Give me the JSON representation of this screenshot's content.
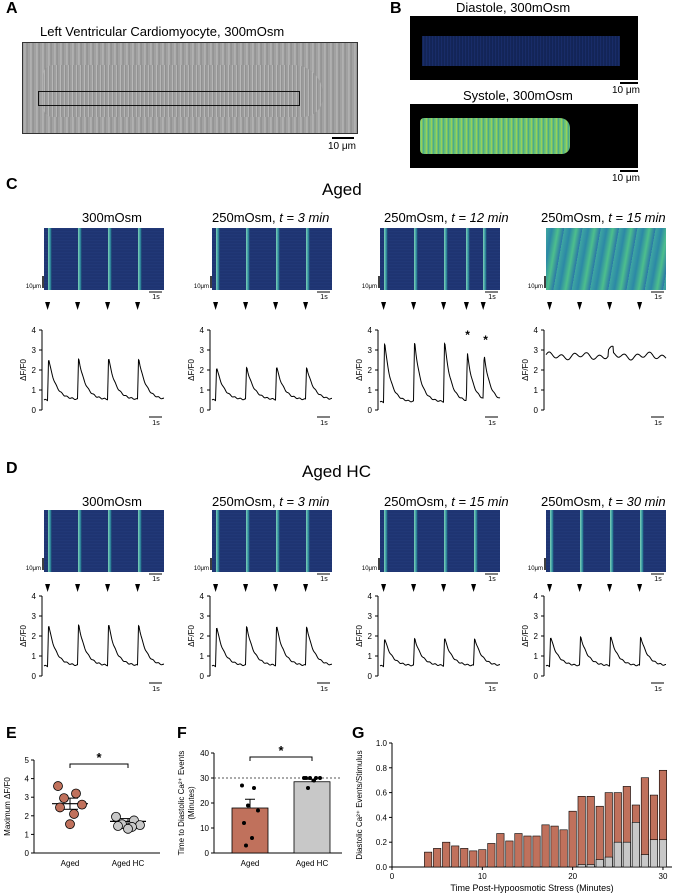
{
  "panels": {
    "A": {
      "label": "A",
      "title": "Left Ventricular Cardiomyocyte, 300mOsm",
      "scale": "10 μm"
    },
    "B": {
      "label": "B",
      "diastole": "Diastole, 300mOsm",
      "systole": "Systole, 300mOsm",
      "scale": "10 μm"
    },
    "C": {
      "label": "C",
      "group": "Aged",
      "columns": [
        {
          "title": "300mOsm",
          "title_it": ""
        },
        {
          "title": "250mOsm, ",
          "title_it": "t = 3 min"
        },
        {
          "title": "250mOsm, ",
          "title_it": "t = 12 min"
        },
        {
          "title": "250mOsm, ",
          "title_it": "t = 15 min"
        }
      ],
      "scale_y": "10μm",
      "scale_x": "1s",
      "ylabel": "ΔF/F0",
      "yticks": [
        "0",
        "1",
        "2",
        "3",
        "4"
      ],
      "asterisk": "*"
    },
    "D": {
      "label": "D",
      "group": "Aged HC",
      "columns": [
        {
          "title": "300mOsm",
          "title_it": ""
        },
        {
          "title": "250mOsm, ",
          "title_it": "t = 3 min"
        },
        {
          "title": "250mOsm, ",
          "title_it": "t = 15 min"
        },
        {
          "title": "250mOsm, ",
          "title_it": "t = 30 min"
        }
      ],
      "scale_y": "10μm",
      "scale_x": "1s",
      "ylabel": "ΔF/F0",
      "yticks": [
        "0",
        "1",
        "2",
        "3",
        "4"
      ]
    },
    "E": {
      "label": "E",
      "sig": "*"
    },
    "F": {
      "label": "F",
      "sig": "*"
    },
    "G": {
      "label": "G"
    }
  },
  "chart_data": [
    {
      "id": "E",
      "type": "scatter",
      "ylabel": "Maximum ΔF/F0",
      "categories": [
        "Aged",
        "Aged HC"
      ],
      "ylim": [
        0,
        5
      ],
      "yticks": [
        "0",
        "1",
        "2",
        "3",
        "4",
        "5"
      ],
      "colors": [
        "#c0715c",
        "#c8c8c8"
      ],
      "series": [
        {
          "name": "Aged",
          "values": [
            3.6,
            3.2,
            2.95,
            2.6,
            2.45,
            2.1,
            1.55
          ],
          "mean": 2.65,
          "sem": 0.3
        },
        {
          "name": "Aged HC",
          "values": [
            1.95,
            1.75,
            1.55,
            1.5,
            1.45,
            1.4,
            1.3
          ],
          "mean": 1.7,
          "sem": 0.15
        }
      ]
    },
    {
      "id": "F",
      "type": "bar",
      "ylabel": "Time to Diastolic Ca2+ Events (Minutes)",
      "categories": [
        "Aged",
        "Aged HC"
      ],
      "ylim": [
        0,
        40
      ],
      "yticks": [
        "0",
        "10",
        "20",
        "30",
        "40"
      ],
      "reference_line": 30,
      "colors": [
        "#c0715c",
        "#c8c8c8"
      ],
      "values": [
        18,
        28.5
      ],
      "sem": [
        3.5,
        1
      ],
      "points": [
        [
          27,
          26,
          19,
          17,
          12,
          6,
          3
        ],
        [
          30,
          30,
          30,
          30,
          30,
          29,
          26
        ]
      ]
    },
    {
      "id": "G",
      "type": "bar",
      "ylabel": "Diastolic Ca2+ Events/Stimulus",
      "xlabel": "Time Post-Hypoosmotic Stress (Minutes)",
      "xlim": [
        0,
        31
      ],
      "ylim": [
        0,
        1.0
      ],
      "xticks": [
        "0",
        "10",
        "20",
        "30"
      ],
      "yticks": [
        "0.0",
        "0.2",
        "0.4",
        "0.6",
        "0.8",
        "1.0"
      ],
      "colors": [
        "#c0715c",
        "#c8c8c8"
      ],
      "x": [
        4,
        5,
        6,
        7,
        8,
        9,
        10,
        11,
        12,
        13,
        14,
        15,
        16,
        17,
        18,
        19,
        20,
        21,
        22,
        23,
        24,
        25,
        26,
        27,
        28,
        29,
        30
      ],
      "series": [
        {
          "name": "Aged",
          "values": [
            0.12,
            0.15,
            0.2,
            0.17,
            0.15,
            0.13,
            0.14,
            0.19,
            0.27,
            0.21,
            0.27,
            0.25,
            0.25,
            0.34,
            0.33,
            0.3,
            0.45,
            0.57,
            0.57,
            0.49,
            0.6,
            0.6,
            0.65,
            0.5,
            0.72,
            0.58,
            0.78
          ]
        },
        {
          "name": "Aged HC",
          "values": [
            0,
            0,
            0,
            0,
            0,
            0,
            0,
            0,
            0,
            0,
            0,
            0,
            0,
            0,
            0,
            0,
            0,
            0.02,
            0.02,
            0.06,
            0.08,
            0.2,
            0.2,
            0.36,
            0.1,
            0.22,
            0.22
          ]
        }
      ]
    }
  ]
}
